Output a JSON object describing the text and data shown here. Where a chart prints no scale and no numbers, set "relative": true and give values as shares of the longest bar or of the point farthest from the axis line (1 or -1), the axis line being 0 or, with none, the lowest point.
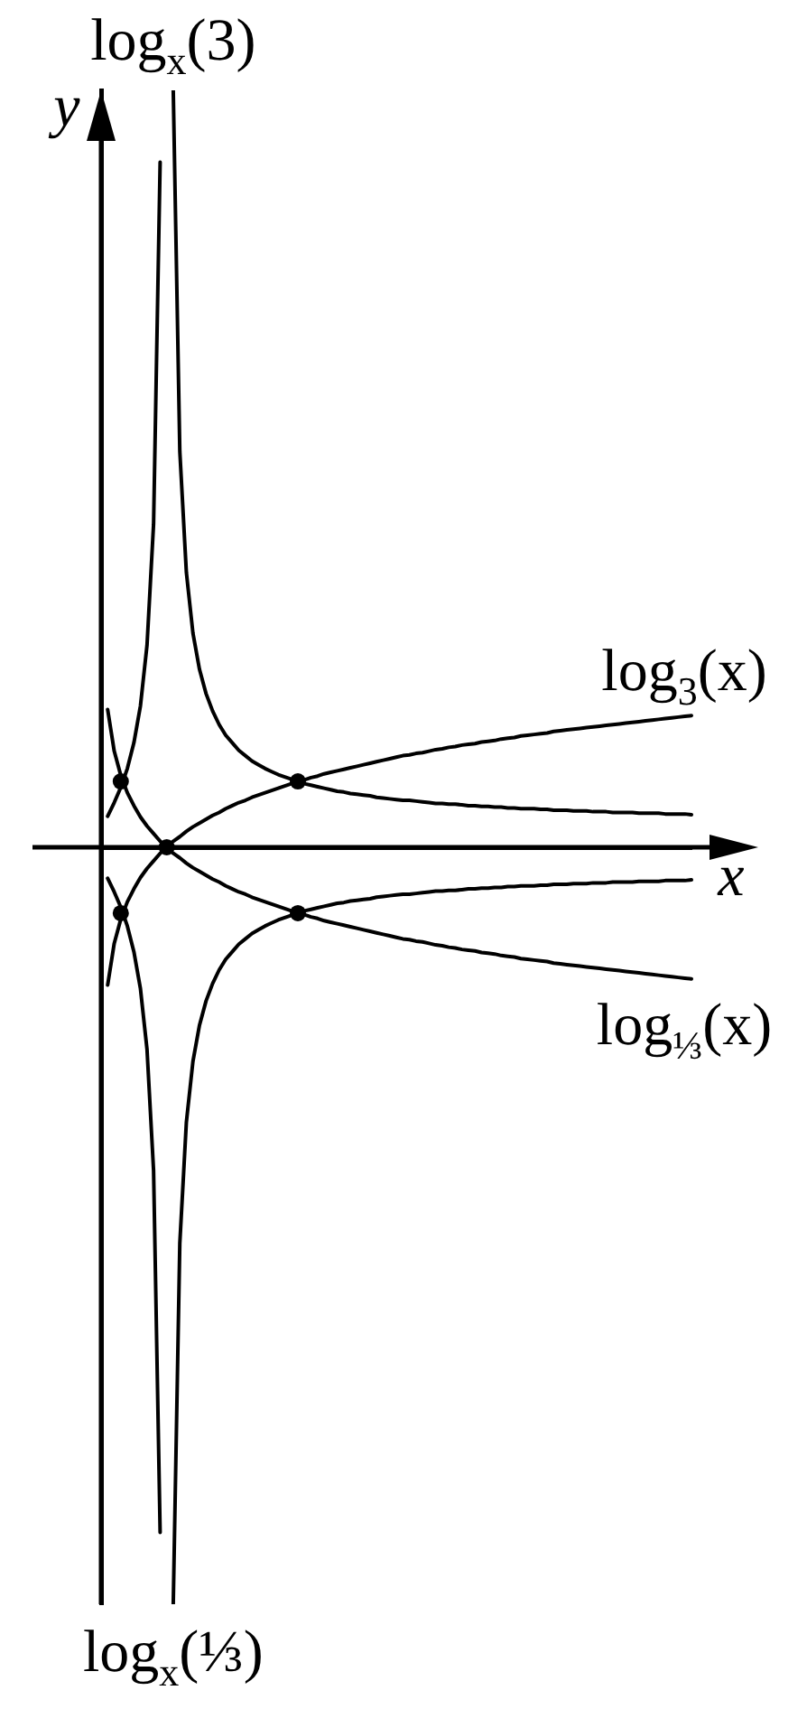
{
  "chart_data": {
    "type": "line",
    "relative": true,
    "xlabel": "x",
    "ylabel": "y",
    "marker": "none",
    "categories": [
      null,
      null,
      null,
      null,
      null,
      null,
      null,
      null,
      null,
      null,
      null,
      null,
      null,
      null,
      null,
      null,
      null,
      null,
      null,
      null,
      null,
      null,
      null,
      null,
      null,
      null,
      null,
      null,
      null,
      null,
      null,
      null,
      null,
      null,
      null,
      null,
      null,
      null,
      null,
      null,
      null,
      null,
      null,
      null,
      null,
      null,
      null,
      null,
      null,
      null,
      null,
      null,
      null,
      null,
      null,
      null,
      null,
      null,
      null,
      null,
      null,
      null,
      null,
      null,
      null,
      null,
      null,
      null,
      null,
      null,
      null,
      null,
      null,
      null,
      null,
      null,
      null,
      null,
      null,
      null,
      null,
      null,
      null,
      null,
      null,
      null,
      null,
      null,
      null,
      null,
      null
    ],
    "series": [
      {
        "name": "log$_{x}$(3)",
        "color": "#000000",
        "values": [
          null,
          -0.041,
          -0.059,
          -0.079,
          -0.104,
          -0.138,
          -0.187,
          -0.267,
          -0.427,
          -0.905,
          null,
          1,
          0.523,
          0.363,
          0.283,
          0.235,
          0.203,
          0.18,
          0.162,
          0.148,
          0.138,
          0.128,
          0.121,
          0.114,
          0.109,
          0.104,
          0.1,
          0.096,
          0.093,
          0.09,
          0.087,
          0.084,
          0.082,
          0.08,
          0.078,
          0.076,
          0.074,
          0.073,
          0.071,
          0.07,
          0.069,
          0.068,
          0.066,
          0.065,
          0.064,
          0.063,
          0.062,
          0.062,
          0.061,
          0.06,
          0.059,
          0.058,
          0.058,
          0.057,
          0.057,
          0.056,
          0.055,
          0.055,
          0.054,
          0.054,
          0.053,
          0.053,
          0.052,
          0.052,
          0.051,
          0.051,
          0.051,
          0.05,
          0.05,
          0.049,
          0.049,
          0.049,
          0.048,
          0.048,
          0.048,
          0.047,
          0.047,
          0.047,
          0.046,
          0.046,
          0.046,
          0.046,
          0.045,
          0.045,
          0.045,
          0.045,
          0.044,
          0.044,
          0.044,
          0.044,
          0.043
        ]
      },
      {
        "name": "log$_{3}$(x)",
        "color": "#000000",
        "values": [
          null,
          -0.182,
          -0.127,
          -0.095,
          -0.072,
          -0.055,
          -0.04,
          -0.028,
          -0.018,
          -0.008,
          0,
          0.008,
          0.014,
          0.021,
          0.027,
          0.032,
          0.037,
          0.042,
          0.046,
          0.051,
          0.055,
          0.059,
          0.062,
          0.066,
          0.069,
          0.072,
          0.075,
          0.078,
          0.081,
          0.084,
          0.087,
          0.089,
          0.092,
          0.094,
          0.097,
          0.099,
          0.101,
          0.103,
          0.105,
          0.107,
          0.109,
          0.111,
          0.113,
          0.115,
          0.117,
          0.119,
          0.121,
          0.122,
          0.124,
          0.125,
          0.127,
          0.129,
          0.13,
          0.132,
          0.133,
          0.135,
          0.136,
          0.137,
          0.139,
          0.14,
          0.141,
          0.143,
          0.144,
          0.145,
          0.147,
          0.148,
          0.149,
          0.15,
          0.151,
          0.153,
          0.154,
          0.155,
          0.156,
          0.157,
          0.158,
          0.159,
          0.16,
          0.161,
          0.162,
          0.163,
          0.164,
          0.165,
          0.166,
          0.167,
          0.168,
          0.169,
          0.17,
          0.171,
          0.172,
          0.173,
          0.174
        ]
      },
      {
        "name": "log$_{⅓}$(x)",
        "color": "#000000",
        "values": [
          null,
          0.182,
          0.127,
          0.095,
          0.072,
          0.055,
          0.04,
          0.028,
          0.018,
          0.008,
          0,
          -0.008,
          -0.014,
          -0.021,
          -0.027,
          -0.032,
          -0.037,
          -0.042,
          -0.046,
          -0.051,
          -0.055,
          -0.059,
          -0.062,
          -0.066,
          -0.069,
          -0.072,
          -0.075,
          -0.078,
          -0.081,
          -0.084,
          -0.087,
          -0.089,
          -0.092,
          -0.094,
          -0.097,
          -0.099,
          -0.101,
          -0.103,
          -0.105,
          -0.107,
          -0.109,
          -0.111,
          -0.113,
          -0.115,
          -0.117,
          -0.119,
          -0.121,
          -0.122,
          -0.124,
          -0.125,
          -0.127,
          -0.129,
          -0.13,
          -0.132,
          -0.133,
          -0.135,
          -0.136,
          -0.137,
          -0.139,
          -0.14,
          -0.141,
          -0.143,
          -0.144,
          -0.145,
          -0.147,
          -0.148,
          -0.149,
          -0.15,
          -0.151,
          -0.153,
          -0.154,
          -0.155,
          -0.156,
          -0.157,
          -0.158,
          -0.159,
          -0.16,
          -0.161,
          -0.162,
          -0.163,
          -0.164,
          -0.165,
          -0.166,
          -0.167,
          -0.168,
          -0.169,
          -0.17,
          -0.171,
          -0.172,
          -0.173,
          -0.174
        ]
      },
      {
        "name": "log$_{x}$(⅓)",
        "color": "#000000",
        "values": [
          null,
          0.041,
          0.059,
          0.079,
          0.104,
          0.138,
          0.187,
          0.267,
          0.427,
          0.905,
          null,
          -1,
          -0.523,
          -0.363,
          -0.283,
          -0.235,
          -0.203,
          -0.18,
          -0.162,
          -0.148,
          -0.138,
          -0.128,
          -0.121,
          -0.114,
          -0.109,
          -0.104,
          -0.1,
          -0.096,
          -0.093,
          -0.09,
          -0.087,
          -0.084,
          -0.082,
          -0.08,
          -0.078,
          -0.076,
          -0.074,
          -0.073,
          -0.071,
          -0.07,
          -0.069,
          -0.068,
          -0.066,
          -0.065,
          -0.064,
          -0.063,
          -0.062,
          -0.062,
          -0.061,
          -0.06,
          -0.059,
          -0.058,
          -0.058,
          -0.057,
          -0.057,
          -0.056,
          -0.055,
          -0.055,
          -0.054,
          -0.054,
          -0.053,
          -0.053,
          -0.052,
          -0.052,
          -0.051,
          -0.051,
          -0.051,
          -0.05,
          -0.05,
          -0.049,
          -0.049,
          -0.049,
          -0.048,
          -0.048,
          -0.048,
          -0.047,
          -0.047,
          -0.047,
          -0.046,
          -0.046,
          -0.046,
          -0.046,
          -0.045,
          -0.045,
          -0.045,
          -0.045,
          -0.044,
          -0.044,
          -0.044,
          -0.044,
          -0.043
        ]
      },
      {
        "color": "#000000",
        "marker": "circle",
        "values": [
          null,
          null,
          null,
          0.087,
          null,
          null,
          null,
          null,
          null,
          null,
          null,
          null,
          null,
          null,
          null,
          null,
          null,
          null,
          null,
          null,
          null,
          null,
          null,
          null,
          null,
          null,
          null,
          null,
          null,
          null,
          0.087,
          null,
          null,
          null,
          null,
          null,
          null,
          null,
          null,
          null,
          null,
          null,
          null,
          null,
          null,
          null,
          null,
          null,
          null,
          null,
          null,
          null,
          null,
          null,
          null,
          null,
          null,
          null,
          null,
          null,
          null,
          null,
          null,
          null,
          null,
          null,
          null,
          null,
          null,
          null,
          null,
          null,
          null,
          null,
          null,
          null,
          null,
          null,
          null,
          null,
          null,
          null,
          null,
          null,
          null,
          null,
          null,
          null,
          null,
          null,
          null
        ]
      },
      {
        "color": "#000000",
        "marker": "circle",
        "values": [
          null,
          null,
          null,
          -0.087,
          null,
          null,
          null,
          null,
          null,
          null,
          0,
          null,
          null,
          null,
          null,
          null,
          null,
          null,
          null,
          null,
          null,
          null,
          null,
          null,
          null,
          null,
          null,
          null,
          null,
          null,
          -0.087,
          null,
          null,
          null,
          null,
          null,
          null,
          null,
          null,
          null,
          null,
          null,
          null,
          null,
          null,
          null,
          null,
          null,
          null,
          null,
          null,
          null,
          null,
          null,
          null,
          null,
          null,
          null,
          null,
          null,
          null,
          null,
          null,
          null,
          null,
          null,
          null,
          null,
          null,
          null,
          null,
          null,
          null,
          null,
          null,
          null,
          null,
          null,
          null,
          null,
          null,
          null,
          null,
          null,
          null,
          null,
          null,
          null,
          null,
          null,
          null
        ]
      }
    ]
  }
}
